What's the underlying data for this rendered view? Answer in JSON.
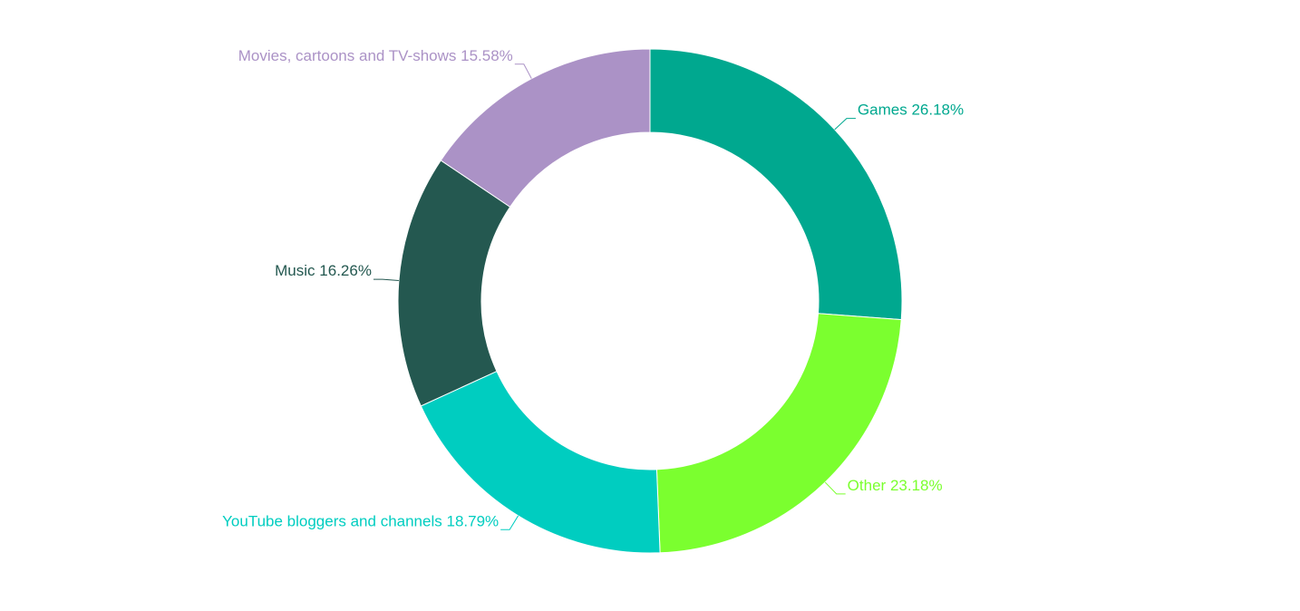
{
  "chart_data": {
    "type": "donut",
    "categories": [
      "Games",
      "Other",
      "YouTube bloggers and channels",
      "Music",
      "Movies, cartoons and TV-shows"
    ],
    "values": [
      26.18,
      23.18,
      18.79,
      16.26,
      15.58
    ],
    "value_labels": [
      "26.18%",
      "23.18%",
      "18.79%",
      "16.26%",
      "15.58%"
    ],
    "colors": [
      "#00a88f",
      "#7bff2f",
      "#00cdc0",
      "#245850",
      "#ab92c6"
    ]
  }
}
